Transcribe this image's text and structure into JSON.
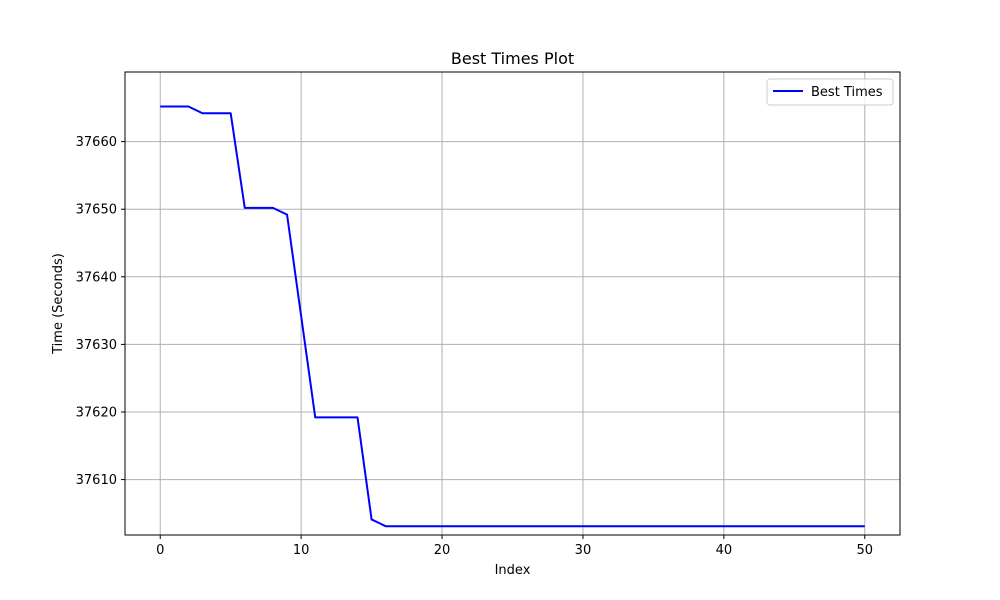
{
  "chart_data": {
    "type": "line",
    "title": "Best Times Plot",
    "xlabel": "Index",
    "ylabel": "Time (Seconds)",
    "xlim": [
      -2.5,
      52.5
    ],
    "ylim": [
      37601.8,
      37670.3
    ],
    "x_ticks": [
      0,
      10,
      20,
      30,
      40,
      50
    ],
    "y_ticks": [
      37610,
      37620,
      37630,
      37640,
      37650,
      37660
    ],
    "grid": true,
    "legend_position": "top-right",
    "series": [
      {
        "name": "Best Times",
        "color": "#0000ff",
        "x": [
          0,
          1,
          2,
          3,
          4,
          5,
          6,
          7,
          8,
          9,
          10,
          11,
          12,
          13,
          14,
          15,
          16,
          17,
          18,
          19,
          20,
          21,
          22,
          23,
          24,
          25,
          26,
          27,
          28,
          29,
          30,
          31,
          32,
          33,
          34,
          35,
          36,
          37,
          38,
          39,
          40,
          41,
          42,
          43,
          44,
          45,
          46,
          47,
          48,
          49,
          50
        ],
        "values": [
          37665.2,
          37665.2,
          37665.2,
          37664.2,
          37664.2,
          37664.2,
          37650.2,
          37650.2,
          37650.2,
          37649.2,
          37634.2,
          37619.2,
          37619.2,
          37619.2,
          37619.2,
          37604.1,
          37603.1,
          37603.1,
          37603.1,
          37603.1,
          37603.1,
          37603.1,
          37603.1,
          37603.1,
          37603.1,
          37603.1,
          37603.1,
          37603.1,
          37603.1,
          37603.1,
          37603.1,
          37603.1,
          37603.1,
          37603.1,
          37603.1,
          37603.1,
          37603.1,
          37603.1,
          37603.1,
          37603.1,
          37603.1,
          37603.1,
          37603.1,
          37603.1,
          37603.1,
          37603.1,
          37603.1,
          37603.1,
          37603.1,
          37603.1,
          37603.1
        ]
      }
    ]
  }
}
